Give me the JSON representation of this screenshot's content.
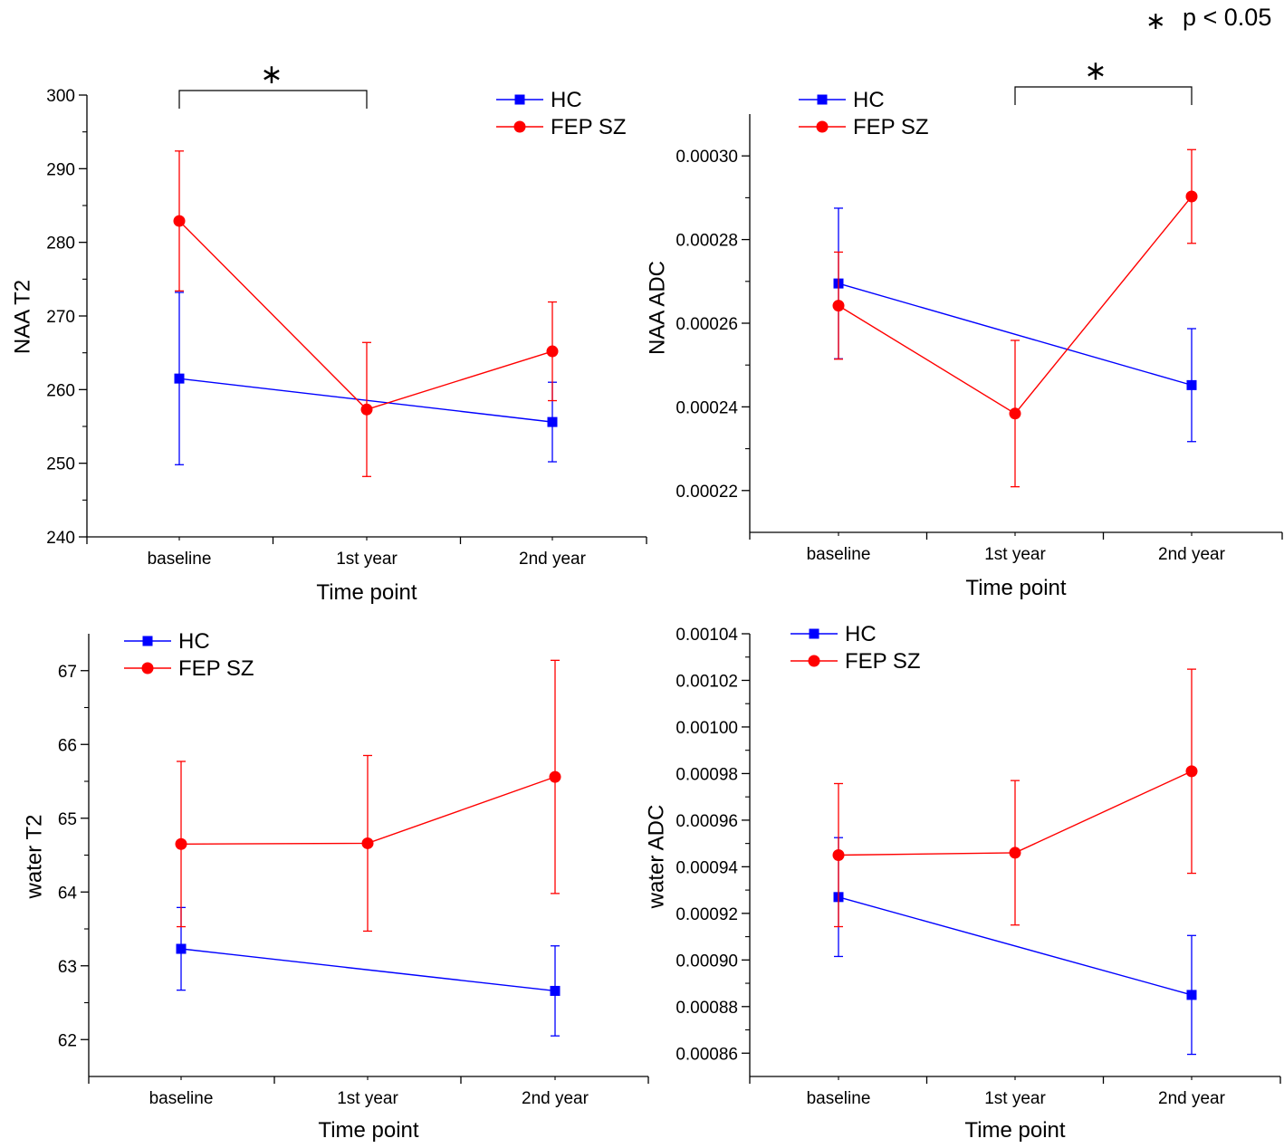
{
  "figure_note": {
    "symbol": "∗",
    "text": "p < 0.05"
  },
  "chart_data": [
    {
      "type": "line",
      "panel": "top-left",
      "title": "",
      "xlabel": "Time point",
      "ylabel": "NAA T2",
      "categories": [
        "baseline",
        "1st year",
        "2nd year"
      ],
      "ylim": [
        240,
        300
      ],
      "yticks": [
        240,
        250,
        260,
        270,
        280,
        290,
        300
      ],
      "ytick_labels": [
        "240",
        "250",
        "260",
        "270",
        "280",
        "290",
        "300"
      ],
      "legend_position": "top-right",
      "series": [
        {
          "name": "HC",
          "color": "#0000ff",
          "marker": "square",
          "values": [
            261.5,
            null,
            255.6
          ],
          "err": [
            11.7,
            null,
            5.4
          ]
        },
        {
          "name": "FEP SZ",
          "color": "#ff0000",
          "marker": "circle",
          "values": [
            282.9,
            257.3,
            265.2
          ],
          "err": [
            9.5,
            9.1,
            6.7
          ]
        }
      ],
      "significance": {
        "from": 0,
        "to": 1,
        "label": "∗"
      }
    },
    {
      "type": "line",
      "panel": "top-right",
      "title": "",
      "xlabel": "Time point",
      "ylabel": "NAA ADC",
      "categories": [
        "baseline",
        "1st year",
        "2nd year"
      ],
      "ylim": [
        0.00021,
        0.00031
      ],
      "yticks": [
        0.00022,
        0.00024,
        0.00026,
        0.00028,
        0.0003
      ],
      "ytick_labels": [
        "0.00022",
        "0.00024",
        "0.00026",
        "0.00028",
        "0.00030"
      ],
      "legend_position": "top-left",
      "series": [
        {
          "name": "HC",
          "color": "#0000ff",
          "marker": "square",
          "values": [
            0.0002695,
            null,
            0.0002452
          ],
          "err": [
            1.8e-05,
            null,
            1.35e-05
          ]
        },
        {
          "name": "FEP SZ",
          "color": "#ff0000",
          "marker": "circle",
          "values": [
            0.0002642,
            0.0002384,
            0.0002903
          ],
          "err": [
            1.28e-05,
            1.75e-05,
            1.12e-05
          ]
        }
      ],
      "significance": {
        "from": 1,
        "to": 2,
        "label": "∗"
      }
    },
    {
      "type": "line",
      "panel": "bottom-left",
      "title": "",
      "xlabel": "Time point",
      "ylabel": "water T2",
      "categories": [
        "baseline",
        "1st year",
        "2nd year"
      ],
      "ylim": [
        61.5,
        67.5
      ],
      "yticks": [
        62,
        63,
        64,
        65,
        66,
        67
      ],
      "ytick_labels": [
        "62",
        "63",
        "64",
        "65",
        "66",
        "67"
      ],
      "legend_position": "top-left",
      "series": [
        {
          "name": "HC",
          "color": "#0000ff",
          "marker": "square",
          "values": [
            63.23,
            null,
            62.66
          ],
          "err": [
            0.56,
            null,
            0.61
          ]
        },
        {
          "name": "FEP SZ",
          "color": "#ff0000",
          "marker": "circle",
          "values": [
            64.65,
            64.66,
            65.56
          ],
          "err": [
            1.12,
            1.19,
            1.58
          ]
        }
      ],
      "significance": null
    },
    {
      "type": "line",
      "panel": "bottom-right",
      "title": "",
      "xlabel": "Time point",
      "ylabel": "water ADC",
      "categories": [
        "baseline",
        "1st year",
        "2nd year"
      ],
      "ylim": [
        0.00085,
        0.00104
      ],
      "yticks": [
        0.00086,
        0.00088,
        0.0009,
        0.00092,
        0.00094,
        0.00096,
        0.00098,
        0.001,
        0.00102,
        0.00104
      ],
      "ytick_labels": [
        "0.00086",
        "0.00088",
        "0.00090",
        "0.00092",
        "0.00094",
        "0.00096",
        "0.00098",
        "0.00100",
        "0.00102",
        "0.00104"
      ],
      "legend_position": "top-left",
      "series": [
        {
          "name": "HC",
          "color": "#0000ff",
          "marker": "square",
          "values": [
            0.000927,
            null,
            0.000885
          ],
          "err": [
            2.55e-05,
            null,
            2.55e-05
          ]
        },
        {
          "name": "FEP SZ",
          "color": "#ff0000",
          "marker": "circle",
          "values": [
            0.000945,
            0.000946,
            0.000981
          ],
          "err": [
            3.07e-05,
            3.1e-05,
            4.38e-05
          ]
        }
      ],
      "significance": null
    }
  ]
}
